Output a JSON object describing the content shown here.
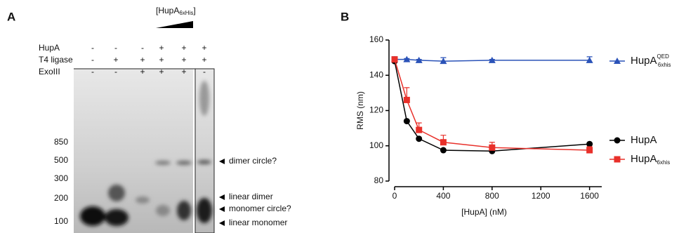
{
  "panel_a": {
    "label": "A",
    "wedge_label": {
      "text": "[HupA",
      "sub": "6xHis",
      "close": "]"
    },
    "rows": [
      {
        "name": "HupA",
        "signs": [
          "-",
          "-",
          "-",
          "+",
          "+",
          "+"
        ]
      },
      {
        "name": "T4 ligase",
        "signs": [
          "-",
          "+",
          "+",
          "+",
          "+",
          "+"
        ]
      },
      {
        "name": "ExoIII",
        "signs": [
          "-",
          "-",
          "+",
          "+",
          "+",
          "-"
        ]
      }
    ],
    "markers": [
      "850",
      "500",
      "300",
      "200",
      "100"
    ],
    "annotations": [
      "dimer circle?",
      "linear dimer",
      "monomer circle?",
      "linear monomer"
    ]
  },
  "chart_data": {
    "type": "line",
    "panel_label": "B",
    "x_label": "[HupA] (nM)",
    "y_label": "RMS (nm)",
    "x": [
      0,
      100,
      200,
      400,
      800,
      1600
    ],
    "xlim": [
      0,
      1700
    ],
    "xticks": [
      0,
      400,
      800,
      1200,
      1600
    ],
    "ylim": [
      80,
      160
    ],
    "yticks": [
      80,
      100,
      120,
      140,
      160
    ],
    "series": [
      {
        "name": "HupA",
        "sup": "QED",
        "sub": "6xhis",
        "color": "#2a52b8",
        "marker": "triangle",
        "values": [
          149,
          149,
          148.5,
          148,
          148.5,
          148.5
        ],
        "errors": [
          1.5,
          0.5,
          0.5,
          2,
          0.5,
          2
        ]
      },
      {
        "name": "HupA",
        "color": "#000000",
        "marker": "circle",
        "values": [
          148,
          114,
          104,
          97.5,
          97,
          101
        ]
      },
      {
        "name": "HupA",
        "sub": "6xhis",
        "color": "#e8302a",
        "marker": "square",
        "values": [
          149,
          126,
          109,
          102,
          99,
          97.5
        ],
        "errors": [
          1,
          7,
          4,
          4,
          3,
          2
        ]
      }
    ]
  }
}
